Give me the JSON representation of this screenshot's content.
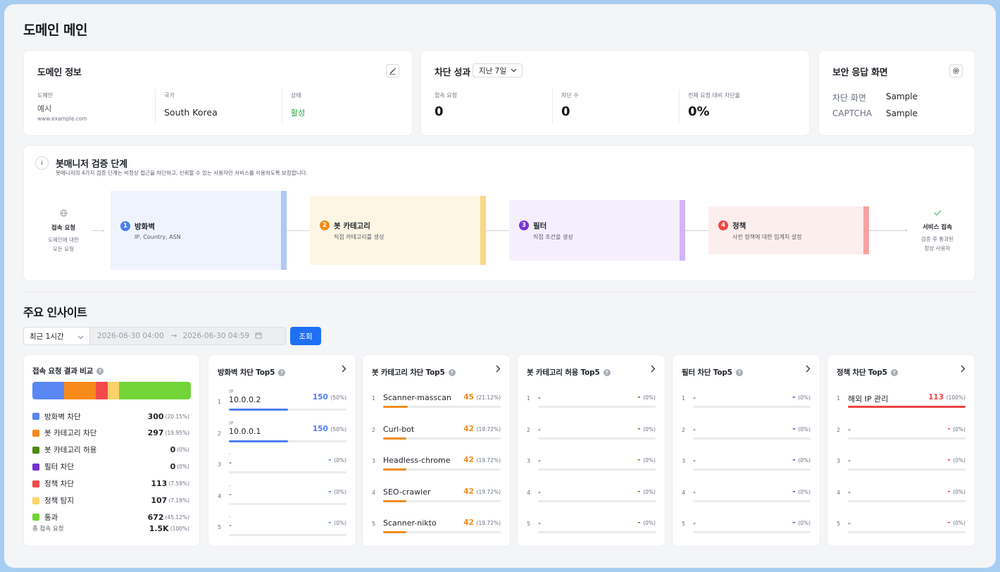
{
  "page_title": "도메인 메인",
  "domain_info": {
    "title": "도메인 정보",
    "domain_label": "도메인",
    "domain_value": "예시",
    "domain_url": "www.example.com",
    "country_label": "국가",
    "country_value": "South Korea",
    "status_label": "상태",
    "status_value": "활성"
  },
  "block_perf": {
    "title": "차단 성과",
    "period": "지난 7일",
    "access_label": "접속 요청",
    "access_value": "0",
    "block_label": "차단 수",
    "block_value": "0",
    "ratio_label": "전체 요청 대비 차단율",
    "ratio_value": "0%"
  },
  "security_response": {
    "title": "보안 응답 화면",
    "rows": [
      {
        "label": "차단 화면",
        "value": "Sample"
      },
      {
        "label": "CAPTCHA",
        "value": "Sample"
      }
    ]
  },
  "botmanager": {
    "title": "봇매니저 검증 단계",
    "desc": "봇매니저의 4가지 검증 단계는 비정상 접근을 차단하고, 신뢰할 수 있는 사용자만 서비스를 이용하도록 보장합니다.",
    "start": {
      "title": "접속 요청",
      "desc1": "도메인에 대한",
      "desc2": "모든 요청"
    },
    "end": {
      "title": "서비스 접속",
      "desc1": "검증 후 통과된",
      "desc2": "정상 사용자"
    },
    "stages": [
      {
        "num": "1",
        "name": "방화벽",
        "desc": "IP, Country, ASN",
        "color": "#4d7ef0",
        "bg": "#eef3fd",
        "bar": "#aec7f7"
      },
      {
        "num": "2",
        "name": "봇 카테고리",
        "desc": "직접 카테고리를 생성",
        "color": "#f08c1c",
        "bg": "#fef6e4",
        "bar": "#fbd68a"
      },
      {
        "num": "3",
        "name": "필터",
        "desc": "직접 조건을 생성",
        "color": "#7c34d6",
        "bg": "#f5effd",
        "bar": "#d4b4f5"
      },
      {
        "num": "4",
        "name": "정책",
        "desc": "사전 정책에 대한 임계치 설정",
        "color": "#ef4444",
        "bg": "#fdeeee",
        "bar": "#f7a3a3"
      }
    ]
  },
  "insights": {
    "title": "주요 인사이트",
    "range": "최근 1시간",
    "start": "2026-06-30 04:00",
    "end": "2026-06-30 04:59",
    "search_label": "조회"
  },
  "compare": {
    "title": "접속 요청 결과 비교",
    "bar_shares": [
      20.15,
      19.95,
      0,
      0,
      7.59,
      7.19,
      45.12
    ],
    "items": [
      {
        "label": "방화벽 차단",
        "value": "300",
        "pct": "(20.15%)",
        "color": "#5b87f2"
      },
      {
        "label": "봇 카테고리 차단",
        "value": "297",
        "pct": "(19.95%)",
        "color": "#f78a1b"
      },
      {
        "label": "봇 카테고리 허용",
        "value": "0",
        "pct": "(0%)",
        "color": "#4d8a12"
      },
      {
        "label": "필터 차단",
        "value": "0",
        "pct": "(0%)",
        "color": "#7232d0"
      },
      {
        "label": "정책 차단",
        "value": "113",
        "pct": "(7.59%)",
        "color": "#f44a4a"
      },
      {
        "label": "정책 탐지",
        "value": "107",
        "pct": "(7.19%)",
        "color": "#fcd26a"
      },
      {
        "label": "통과",
        "value": "672",
        "pct": "(45.12%)",
        "color": "#72d437"
      }
    ],
    "total_label": "총 접속 요청",
    "total_value": "1.5K",
    "total_pct": "(100%)"
  },
  "top5": [
    {
      "title": "방화벽 차단 Top5",
      "color": "#4d7ef0",
      "rows": [
        {
          "rank": "1",
          "sub": "IP",
          "name": "10.0.0.2",
          "value": "150",
          "pct": "(50%)",
          "share": 0.5
        },
        {
          "rank": "2",
          "sub": "IP",
          "name": "10.0.0.1",
          "value": "150",
          "pct": "(50%)",
          "share": 0.5
        },
        {
          "rank": "3",
          "sub": "-",
          "name": "-",
          "value": "-",
          "pct": "(0%)",
          "share": 0
        },
        {
          "rank": "4",
          "sub": "-",
          "name": "-",
          "value": "-",
          "pct": "(0%)",
          "share": 0
        },
        {
          "rank": "5",
          "sub": "-",
          "name": "-",
          "value": "-",
          "pct": "(0%)",
          "share": 0
        }
      ]
    },
    {
      "title": "봇 카테고리 차단 Top5",
      "color": "#f08c1c",
      "rows": [
        {
          "rank": "1",
          "name": "Scanner-masscan",
          "value": "45",
          "pct": "(21.12%)",
          "share": 0.2112
        },
        {
          "rank": "2",
          "name": "Curl-bot",
          "value": "42",
          "pct": "(19.72%)",
          "share": 0.1972
        },
        {
          "rank": "3",
          "name": "Headless-chrome",
          "value": "42",
          "pct": "(19.72%)",
          "share": 0.1972
        },
        {
          "rank": "4",
          "name": "SEO-crawler",
          "value": "42",
          "pct": "(19.72%)",
          "share": 0.1972
        },
        {
          "rank": "5",
          "name": "Scanner-nikto",
          "value": "42",
          "pct": "(19.72%)",
          "share": 0.1972
        }
      ]
    },
    {
      "title": "봇 카테고리 허용 Top5",
      "color": "#5a8a1e",
      "rows": [
        {
          "rank": "1",
          "name": "-",
          "value": "-",
          "pct": "(0%)",
          "share": 0
        },
        {
          "rank": "2",
          "name": "-",
          "value": "-",
          "pct": "(0%)",
          "share": 0
        },
        {
          "rank": "3",
          "name": "-",
          "value": "-",
          "pct": "(0%)",
          "share": 0
        },
        {
          "rank": "4",
          "name": "-",
          "value": "-",
          "pct": "(0%)",
          "share": 0
        },
        {
          "rank": "5",
          "name": "-",
          "value": "-",
          "pct": "(0%)",
          "share": 0
        }
      ]
    },
    {
      "title": "필터 차단 Top5",
      "color": "#6d3bd6",
      "rows": [
        {
          "rank": "1",
          "name": "-",
          "value": "-",
          "pct": "(0%)",
          "share": 0
        },
        {
          "rank": "2",
          "name": "-",
          "value": "-",
          "pct": "(0%)",
          "share": 0
        },
        {
          "rank": "3",
          "name": "-",
          "value": "-",
          "pct": "(0%)",
          "share": 0
        },
        {
          "rank": "4",
          "name": "-",
          "value": "-",
          "pct": "(0%)",
          "share": 0
        },
        {
          "rank": "5",
          "name": "-",
          "value": "-",
          "pct": "(0%)",
          "share": 0
        }
      ]
    },
    {
      "title": "정책 차단 Top5",
      "color": "#ef4444",
      "rows": [
        {
          "rank": "1",
          "name": "해외 IP 관리",
          "value": "113",
          "pct": "(100%)",
          "share": 1
        },
        {
          "rank": "2",
          "name": "-",
          "value": "-",
          "pct": "(0%)",
          "share": 0
        },
        {
          "rank": "3",
          "name": "-",
          "value": "-",
          "pct": "(0%)",
          "share": 0
        },
        {
          "rank": "4",
          "name": "-",
          "value": "-",
          "pct": "(0%)",
          "share": 0
        },
        {
          "rank": "5",
          "name": "-",
          "value": "-",
          "pct": "(0%)",
          "share": 0
        }
      ]
    }
  ]
}
